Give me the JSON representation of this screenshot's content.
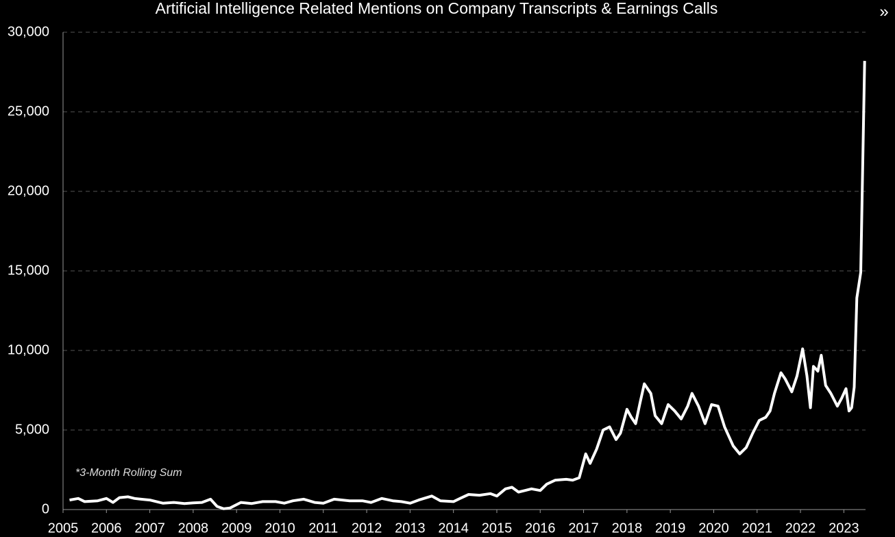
{
  "chart_data": {
    "type": "line",
    "title": "Artificial Intelligence Related Mentions on Company Transcripts & Earnings Calls",
    "annotation": "*3-Month Rolling Sum",
    "expand_icon": "»",
    "grid": true,
    "series": [
      {
        "name": "AI Mentions",
        "color": "#ffffff",
        "x": [
          2005.15,
          2005.35,
          2005.5,
          2005.8,
          2006.0,
          2006.15,
          2006.3,
          2006.5,
          2006.65,
          2006.8,
          2007.0,
          2007.3,
          2007.55,
          2007.8,
          2008.0,
          2008.2,
          2008.4,
          2008.55,
          2008.7,
          2008.85,
          2009.1,
          2009.35,
          2009.6,
          2009.9,
          2010.1,
          2010.3,
          2010.55,
          2010.8,
          2011.0,
          2011.25,
          2011.6,
          2011.9,
          2012.1,
          2012.35,
          2012.6,
          2012.8,
          2013.0,
          2013.2,
          2013.5,
          2013.7,
          2014.0,
          2014.15,
          2014.35,
          2014.6,
          2014.85,
          2015.0,
          2015.2,
          2015.35,
          2015.5,
          2015.65,
          2015.8,
          2016.0,
          2016.15,
          2016.35,
          2016.6,
          2016.75,
          2016.9,
          2017.05,
          2017.15,
          2017.3,
          2017.45,
          2017.6,
          2017.75,
          2017.85,
          2018.0,
          2018.1,
          2018.2,
          2018.3,
          2018.4,
          2018.55,
          2018.65,
          2018.8,
          2018.95,
          2019.1,
          2019.25,
          2019.4,
          2019.5,
          2019.65,
          2019.8,
          2019.95,
          2020.1,
          2020.25,
          2020.35,
          2020.45,
          2020.6,
          2020.75,
          2020.9,
          2021.05,
          2021.2,
          2021.3,
          2021.4,
          2021.55,
          2021.65,
          2021.8,
          2021.92,
          2022.05,
          2022.15,
          2022.23,
          2022.3,
          2022.4,
          2022.48,
          2022.58,
          2022.7,
          2022.85,
          2022.95,
          2023.05,
          2023.12,
          2023.18,
          2023.24,
          2023.3,
          2023.39,
          2023.48
        ],
        "values": [
          600,
          700,
          500,
          550,
          700,
          450,
          750,
          800,
          700,
          650,
          600,
          400,
          450,
          380,
          420,
          450,
          650,
          200,
          50,
          100,
          450,
          380,
          500,
          500,
          400,
          550,
          650,
          450,
          400,
          650,
          550,
          550,
          450,
          700,
          550,
          500,
          400,
          600,
          850,
          550,
          500,
          700,
          950,
          900,
          1000,
          850,
          1300,
          1400,
          1100,
          1200,
          1300,
          1200,
          1600,
          1850,
          1900,
          1850,
          2000,
          3500,
          2900,
          3800,
          5000,
          5200,
          4400,
          4800,
          6300,
          5800,
          5400,
          6700,
          7900,
          7300,
          5900,
          5400,
          6600,
          6200,
          5700,
          6500,
          7300,
          6500,
          5400,
          6600,
          6500,
          5200,
          4600,
          4000,
          3500,
          3900,
          4800,
          5600,
          5800,
          6200,
          7300,
          8600,
          8200,
          7400,
          8400,
          10100,
          8400,
          6400,
          9000,
          8700,
          9700,
          7800,
          7300,
          6500,
          7000,
          7600,
          6200,
          6400,
          7700,
          13300,
          14900,
          28200
        ]
      }
    ],
    "xlim": [
      2005,
      2023.5
    ],
    "xticks": [
      2005,
      2006,
      2007,
      2008,
      2009,
      2010,
      2011,
      2012,
      2013,
      2014,
      2015,
      2016,
      2017,
      2018,
      2019,
      2020,
      2021,
      2022,
      2023
    ],
    "ylim": [
      0,
      30000
    ],
    "yticks": [
      0,
      {
        "value": 5000,
        "label": "5,000"
      },
      {
        "value": 10000,
        "label": "10,000"
      },
      {
        "value": 15000,
        "label": "15,000"
      },
      {
        "value": 20000,
        "label": "20,000"
      },
      {
        "value": 25000,
        "label": "25,000"
      },
      {
        "value": 30000,
        "label": "30,000"
      }
    ]
  }
}
